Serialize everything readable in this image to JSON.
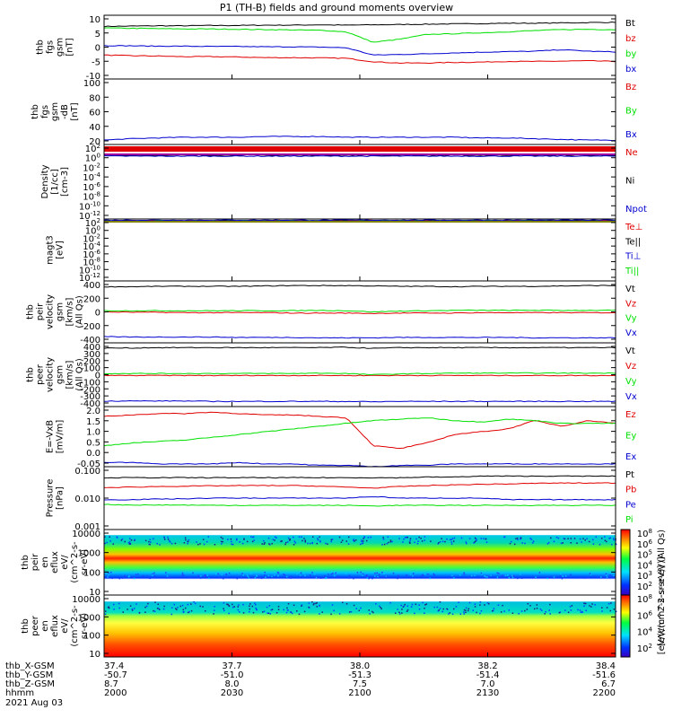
{
  "title": "P1 (TH-B) fields and ground moments overview",
  "colors": {
    "black": "#000000",
    "red": "#e00000",
    "green": "#00e000",
    "blue": "#0000d0",
    "purple": "#a000a0",
    "olive": "#808000"
  },
  "xticks": [
    "2000",
    "2030",
    "2100",
    "2130",
    "2200"
  ],
  "footer": {
    "rows": [
      {
        "label": "thb_X-GSM",
        "values": [
          "37.4",
          "37.7",
          "38.0",
          "38.2",
          "38.4"
        ]
      },
      {
        "label": "thb_Y-GSM",
        "values": [
          "-50.7",
          "-51.0",
          "-51.3",
          "-51.4",
          "-51.6"
        ]
      },
      {
        "label": "thb_Z-GSM",
        "values": [
          "8.7",
          "8.0",
          "7.5",
          "7.0",
          "6.7"
        ]
      },
      {
        "label": "hhmm",
        "values": [
          "2000",
          "2030",
          "2100",
          "2130",
          "2200"
        ]
      }
    ],
    "date": "2021 Aug 03"
  },
  "colorbar": {
    "label": "[eV/(cm^2-s-sr-eV)]",
    "top_label": "[eV/(cm^2-s-sr-eV)] (All Qs)",
    "ticks1": [
      "10^8",
      "10^6",
      "10^5",
      "10^4",
      "10^3",
      "10^2"
    ],
    "ticks2": [
      "10^8",
      "10^6",
      "10^4",
      "10^2"
    ]
  },
  "chart_data": [
    {
      "type": "line",
      "ylabel": [
        "thb",
        "fgs",
        "gsm",
        "[nT]"
      ],
      "ylim": [
        -10,
        10
      ],
      "yticks": [
        "10",
        "5",
        "0",
        "-5",
        "-10"
      ],
      "series": [
        {
          "name": "Bt",
          "color": "black",
          "y": [
            6.5,
            6.6,
            6.7,
            6.7,
            6.8,
            6.8,
            6.9,
            6.9,
            7,
            6.9,
            7,
            7.1,
            7.2,
            7.3,
            7.4,
            7.5,
            7.5,
            7.6,
            7.7,
            7.8
          ]
        },
        {
          "name": "bz",
          "color": "red",
          "y": [
            -2.5,
            -2.7,
            -2.8,
            -3,
            -3,
            -3.1,
            -3.3,
            -3.3,
            -3.4,
            -3.5,
            -4.6,
            -5,
            -5,
            -4.8,
            -4.7,
            -4.5,
            -4.5,
            -4.4,
            -4.3,
            -4.5
          ]
        },
        {
          "name": "by",
          "color": "green",
          "y": [
            6,
            5.9,
            5.8,
            5.7,
            5.7,
            5.6,
            5.5,
            5.4,
            5.3,
            4.8,
            1.5,
            2.5,
            4,
            4.2,
            4.5,
            4.8,
            5.2,
            5.5,
            5.6,
            5.5
          ]
        },
        {
          "name": "bx",
          "color": "blue",
          "y": [
            0.5,
            0.4,
            0.3,
            0.3,
            0.2,
            0.2,
            0.1,
            0.1,
            0,
            -0.2,
            -2.5,
            -2.3,
            -2.1,
            -1.8,
            -1.6,
            -1.4,
            -1.3,
            -0.8,
            -1.3,
            -1.5
          ]
        }
      ]
    },
    {
      "type": "line",
      "ylabel": [
        "thb",
        "fgs",
        "gsm",
        "-dB",
        "[nT]"
      ],
      "ylim": [
        10,
        100
      ],
      "yticks": [
        "100",
        "80",
        "60",
        "40",
        "20"
      ],
      "series": [
        {
          "name": "Bz",
          "color": "red",
          "y": []
        },
        {
          "name": "By",
          "color": "green",
          "y": []
        },
        {
          "name": "Bx",
          "color": "blue",
          "y": [
            16,
            18,
            19,
            20,
            20,
            20,
            21,
            21,
            21,
            20,
            20,
            20,
            20,
            20,
            19,
            19,
            18,
            17,
            16,
            16
          ]
        }
      ]
    },
    {
      "type": "line",
      "ylabel": [
        "Density",
        "[1/cc]",
        "[cm-3]"
      ],
      "ylim": [
        -14,
        2
      ],
      "yticks": [
        "10^2",
        "10^0",
        "10^-2",
        "10^-4",
        "10^-6",
        "10^-8",
        "10^-10",
        "10^-12"
      ],
      "series": [
        {
          "name": "Ne",
          "color": "red",
          "y": [
            0.8,
            0.8,
            0.8,
            0.8,
            0.8,
            0.8,
            0.8,
            0.8,
            0.8,
            0.8,
            0.8,
            0.8,
            0.8,
            0.8,
            0.8,
            0.8,
            0.8,
            0.8,
            0.8,
            0.8
          ]
        },
        {
          "name": "Ni",
          "color": "black",
          "y": [
            -0.3,
            -0.3,
            -0.3,
            -0.3,
            -0.3,
            -0.3,
            -0.3,
            -0.3,
            -0.3,
            -0.3,
            -0.3,
            -0.3,
            -0.3,
            -0.3,
            -0.3,
            -0.3,
            -0.3,
            -0.3,
            -0.3,
            -0.3
          ]
        },
        {
          "name": "Npot",
          "color": "blue",
          "y": [
            -0.5,
            -0.5,
            -0.5,
            -0.5,
            -0.5,
            -0.5,
            -0.5,
            -0.5,
            -0.5,
            -0.5,
            -0.5,
            -0.5,
            -0.5,
            -0.5,
            -0.5,
            -0.5,
            -0.5,
            -0.5,
            -0.5,
            -0.5
          ]
        }
      ]
    },
    {
      "type": "line",
      "ylabel": [
        "magt3",
        "[eV]"
      ],
      "ylim": [
        -14,
        2
      ],
      "yticks": [
        "10^2",
        "10^0",
        "10^-2",
        "10^-4",
        "10^-6",
        "10^-8",
        "10^-10",
        "10^-12"
      ],
      "series": [
        {
          "name": "Te⊥",
          "color": "red",
          "y": [
            1.6,
            1.6,
            1.6,
            1.6,
            1.6,
            1.6,
            1.6,
            1.6,
            1.6,
            1.6,
            1.6,
            1.6,
            1.6,
            1.6,
            1.6,
            1.6,
            1.6,
            1.6,
            1.6,
            1.6
          ]
        },
        {
          "name": "Te||",
          "color": "black",
          "y": [
            1.5,
            1.5,
            1.5,
            1.5,
            1.5,
            1.5,
            1.5,
            1.5,
            1.5,
            1.5,
            1.5,
            1.5,
            1.5,
            1.5,
            1.5,
            1.5,
            1.5,
            1.5,
            1.5,
            1.5
          ]
        },
        {
          "name": "Ti⊥",
          "color": "blue",
          "y": [
            1.7,
            1.7,
            1.7,
            1.7,
            1.7,
            1.7,
            1.7,
            1.7,
            1.7,
            1.7,
            1.7,
            1.7,
            1.7,
            1.7,
            1.7,
            1.7,
            1.7,
            1.7,
            1.7,
            1.7
          ]
        },
        {
          "name": "Ti||",
          "color": "green",
          "y": [
            1.4,
            1.4,
            1.4,
            1.4,
            1.4,
            1.4,
            1.4,
            1.4,
            1.4,
            1.4,
            1.4,
            1.4,
            1.4,
            1.4,
            1.4,
            1.4,
            1.4,
            1.4,
            1.4,
            1.4
          ]
        }
      ]
    },
    {
      "type": "line",
      "ylabel": [
        "thb",
        "peir",
        "velocity",
        "gsm",
        "[km/s]",
        "(All Qs)"
      ],
      "ylim": [
        -400,
        400
      ],
      "yticks": [
        "400",
        "200",
        "0",
        "-200",
        "-400"
      ],
      "series": [
        {
          "name": "Vt",
          "color": "black",
          "y": [
            325,
            325,
            330,
            330,
            330,
            330,
            335,
            340,
            340,
            340,
            335,
            330,
            330,
            325,
            330,
            330,
            330,
            335,
            340,
            340
          ]
        },
        {
          "name": "Vz",
          "color": "red",
          "y": [
            0,
            -5,
            -5,
            -10,
            -10,
            -10,
            -10,
            -15,
            -15,
            -15,
            -20,
            -15,
            -15,
            -15,
            -10,
            -10,
            -10,
            -10,
            -10,
            -10
          ]
        },
        {
          "name": "Vy",
          "color": "green",
          "y": [
            15,
            15,
            15,
            15,
            15,
            15,
            15,
            15,
            20,
            15,
            0,
            10,
            15,
            20,
            20,
            20,
            20,
            20,
            20,
            20
          ]
        },
        {
          "name": "Vx",
          "color": "blue",
          "y": [
            -320,
            -325,
            -325,
            -325,
            -325,
            -330,
            -330,
            -330,
            -335,
            -335,
            -335,
            -330,
            -330,
            -330,
            -330,
            -330,
            -335,
            -335,
            -335,
            -335
          ]
        }
      ]
    },
    {
      "type": "line",
      "ylabel": [
        "thb",
        "peer",
        "velocity",
        "gsm",
        "[km/s]",
        "(All Qs)"
      ],
      "ylim": [
        -400,
        400
      ],
      "yticks": [
        "400",
        "300",
        "200",
        "100",
        "0",
        "-100",
        "-200",
        "-300",
        "-400"
      ],
      "series": [
        {
          "name": "Vt",
          "color": "black",
          "y": [
            335,
            335,
            340,
            340,
            340,
            340,
            340,
            340,
            340,
            345,
            330,
            340,
            340,
            340,
            340,
            340,
            340,
            340,
            340,
            340
          ]
        },
        {
          "name": "Vz",
          "color": "red",
          "y": [
            -10,
            -10,
            -10,
            -10,
            -10,
            -10,
            -10,
            -10,
            -10,
            -10,
            -10,
            -10,
            -10,
            -10,
            -10,
            -10,
            -10,
            -10,
            -10,
            -10
          ]
        },
        {
          "name": "Vy",
          "color": "green",
          "y": [
            15,
            15,
            15,
            15,
            15,
            15,
            15,
            15,
            20,
            15,
            0,
            10,
            15,
            20,
            20,
            20,
            20,
            20,
            20,
            20
          ]
        },
        {
          "name": "Vx",
          "color": "blue",
          "y": [
            -330,
            -330,
            -330,
            -330,
            -335,
            -335,
            -335,
            -335,
            -335,
            -335,
            -340,
            -335,
            -335,
            -335,
            -335,
            -335,
            -335,
            -335,
            -335,
            -335
          ]
        }
      ]
    },
    {
      "type": "line",
      "ylabel": [
        "E=-VxB",
        "[mV/m]"
      ],
      "ylim": [
        -0.05,
        2.1
      ],
      "yticks": [
        "2.0",
        "1.5",
        "1.0",
        "0.5",
        "0.0",
        "-0.05"
      ],
      "series": [
        {
          "name": "Ez",
          "color": "red",
          "y": [
            1.75,
            1.8,
            1.85,
            1.85,
            1.9,
            1.85,
            1.8,
            1.8,
            1.75,
            1.7,
            0.7,
            0.6,
            0.8,
            1.1,
            1.2,
            1.3,
            1.6,
            1.4,
            1.6,
            1.5
          ]
        },
        {
          "name": "Ey",
          "color": "green",
          "y": [
            0.7,
            0.8,
            0.85,
            0.9,
            1,
            1.1,
            1.2,
            1.3,
            1.4,
            1.5,
            1.6,
            1.65,
            1.7,
            1.6,
            1.55,
            1.65,
            1.6,
            1.5,
            1.5,
            1.5
          ]
        },
        {
          "name": "Ex",
          "color": "blue",
          "y": [
            0.1,
            0.1,
            0.05,
            0.05,
            0.05,
            0.1,
            0.05,
            0.05,
            0,
            0,
            -0.05,
            0,
            0,
            0.05,
            0.05,
            0.05,
            0.05,
            0.05,
            0.05,
            0.05
          ]
        }
      ]
    },
    {
      "type": "line",
      "ylabel": [
        "Pressure",
        "[nPa]"
      ],
      "ylim": [
        -3,
        -1
      ],
      "yticks": [
        "0.100",
        "0.010",
        "0.001"
      ],
      "series": [
        {
          "name": "Pt",
          "color": "black",
          "y": [
            -1.35,
            -1.35,
            -1.35,
            -1.35,
            -1.35,
            -1.35,
            -1.35,
            -1.35,
            -1.35,
            -1.35,
            -1.35,
            -1.35,
            -1.33,
            -1.33,
            -1.3,
            -1.3,
            -1.3,
            -1.3,
            -1.3,
            -1.3
          ]
        },
        {
          "name": "Pb",
          "color": "red",
          "y": [
            -1.67,
            -1.65,
            -1.63,
            -1.62,
            -1.61,
            -1.6,
            -1.6,
            -1.6,
            -1.62,
            -1.65,
            -1.68,
            -1.63,
            -1.6,
            -1.58,
            -1.56,
            -1.55,
            -1.53,
            -1.52,
            -1.52,
            -1.52
          ]
        },
        {
          "name": "Pe",
          "color": "blue",
          "y": [
            -2.05,
            -2.05,
            -2.03,
            -2.02,
            -2.0,
            -2.0,
            -2.0,
            -2.0,
            -2.0,
            -2.0,
            -1.95,
            -2.0,
            -2.0,
            -2.0,
            -2.0,
            -2.05,
            -2.05,
            -2.05,
            -2.05,
            -2.05
          ]
        },
        {
          "name": "Pi",
          "color": "green",
          "y": [
            -2.2,
            -2.22,
            -2.22,
            -2.22,
            -2.23,
            -2.23,
            -2.23,
            -2.23,
            -2.23,
            -2.23,
            -2.25,
            -2.23,
            -2.23,
            -2.23,
            -2.23,
            -2.23,
            -2.23,
            -2.23,
            -2.23,
            -2.23
          ]
        }
      ]
    },
    {
      "type": "heatmap",
      "ylabel": [
        "thb",
        "peir",
        "en",
        "eflux",
        "eV/",
        "(cm^2-s-",
        "sr-eV)"
      ],
      "ylim": [
        1,
        4.2
      ],
      "yticks": [
        "10000",
        "1000",
        "100",
        "10"
      ]
    },
    {
      "type": "heatmap",
      "ylabel": [
        "thb",
        "peer",
        "en",
        "eflux",
        "eV/",
        "(cm^2-s-",
        "sr-eV)"
      ],
      "ylim": [
        0.7,
        4.2
      ],
      "yticks": [
        "10000",
        "1000",
        "100",
        "10"
      ]
    }
  ]
}
